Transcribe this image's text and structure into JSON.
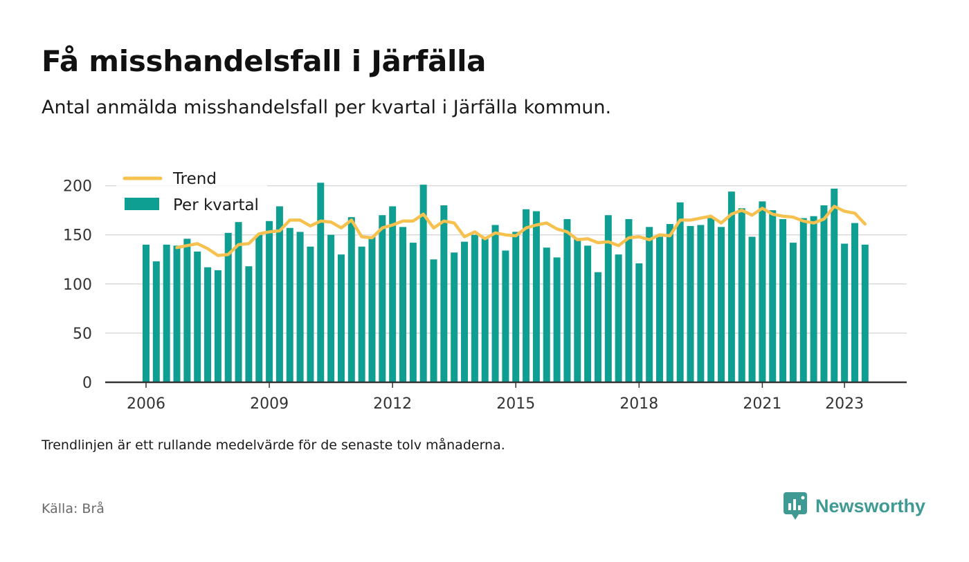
{
  "header": {
    "title": "Få misshandelsfall i Järfälla",
    "subtitle": "Antal anmälda misshandelsfall per kvartal i Järfälla kommun."
  },
  "footer": {
    "note": "Trendlinjen är ett rullande medelvärde för de senaste tolv månaderna.",
    "source": "Källa: Brå",
    "brand": "Newsworthy"
  },
  "colors": {
    "bar": "#0f9e92",
    "trend": "#f7c14f",
    "grid": "#d9d9d9",
    "axis": "#333333",
    "brand": "#3f9a93"
  },
  "chart_data": {
    "type": "bar",
    "title": "Få misshandelsfall i Järfälla",
    "subtitle": "Antal anmälda misshandelsfall per kvartal i Järfälla kommun.",
    "xlabel": "",
    "ylabel": "",
    "ylim": [
      0,
      220
    ],
    "yticks": [
      0,
      50,
      100,
      150,
      200
    ],
    "xticks": [
      "2006",
      "2009",
      "2012",
      "2015",
      "2018",
      "2021",
      "2023"
    ],
    "grid": true,
    "legend_position": "top-left",
    "categories": [
      "2006 Q1",
      "2006 Q2",
      "2006 Q3",
      "2006 Q4",
      "2007 Q1",
      "2007 Q2",
      "2007 Q3",
      "2007 Q4",
      "2008 Q1",
      "2008 Q2",
      "2008 Q3",
      "2008 Q4",
      "2009 Q1",
      "2009 Q2",
      "2009 Q3",
      "2009 Q4",
      "2010 Q1",
      "2010 Q2",
      "2010 Q3",
      "2010 Q4",
      "2011 Q1",
      "2011 Q2",
      "2011 Q3",
      "2011 Q4",
      "2012 Q1",
      "2012 Q2",
      "2012 Q3",
      "2012 Q4",
      "2013 Q1",
      "2013 Q2",
      "2013 Q3",
      "2013 Q4",
      "2014 Q1",
      "2014 Q2",
      "2014 Q3",
      "2014 Q4",
      "2015 Q1",
      "2015 Q2",
      "2015 Q3",
      "2015 Q4",
      "2016 Q1",
      "2016 Q2",
      "2016 Q3",
      "2016 Q4",
      "2017 Q1",
      "2017 Q2",
      "2017 Q3",
      "2017 Q4",
      "2018 Q1",
      "2018 Q2",
      "2018 Q3",
      "2018 Q4",
      "2019 Q1",
      "2019 Q2",
      "2019 Q3",
      "2019 Q4",
      "2020 Q1",
      "2020 Q2",
      "2020 Q3",
      "2020 Q4",
      "2021 Q1",
      "2021 Q2",
      "2021 Q3",
      "2021 Q4",
      "2022 Q1",
      "2022 Q2",
      "2022 Q3",
      "2022 Q4",
      "2023 Q1",
      "2023 Q2",
      "2023 Q3"
    ],
    "series": [
      {
        "name": "Per kvartal",
        "type": "bar",
        "values": [
          140,
          123,
          140,
          139,
          146,
          133,
          117,
          114,
          152,
          163,
          118,
          150,
          164,
          179,
          157,
          153,
          138,
          203,
          150,
          130,
          168,
          138,
          148,
          170,
          179,
          158,
          142,
          201,
          125,
          180,
          132,
          143,
          150,
          146,
          160,
          134,
          153,
          176,
          174,
          137,
          127,
          166,
          146,
          139,
          112,
          170,
          130,
          166,
          121,
          158,
          148,
          161,
          183,
          159,
          160,
          167,
          158,
          194,
          177,
          148,
          184,
          175,
          166,
          142,
          167,
          169,
          180,
          197,
          141,
          162,
          140
        ]
      },
      {
        "name": "Trend",
        "type": "line",
        "values": [
          null,
          null,
          null,
          137,
          139,
          141,
          136,
          129,
          130,
          140,
          141,
          151,
          153,
          154,
          165,
          165,
          159,
          164,
          163,
          157,
          165,
          148,
          147,
          157,
          160,
          164,
          164,
          171,
          157,
          164,
          162,
          148,
          153,
          146,
          152,
          150,
          149,
          157,
          160,
          162,
          156,
          153,
          145,
          146,
          142,
          143,
          139,
          147,
          148,
          145,
          150,
          149,
          165,
          165,
          167,
          169,
          162,
          171,
          175,
          170,
          177,
          171,
          169,
          168,
          164,
          162,
          166,
          179,
          174,
          172,
          161
        ]
      }
    ]
  }
}
